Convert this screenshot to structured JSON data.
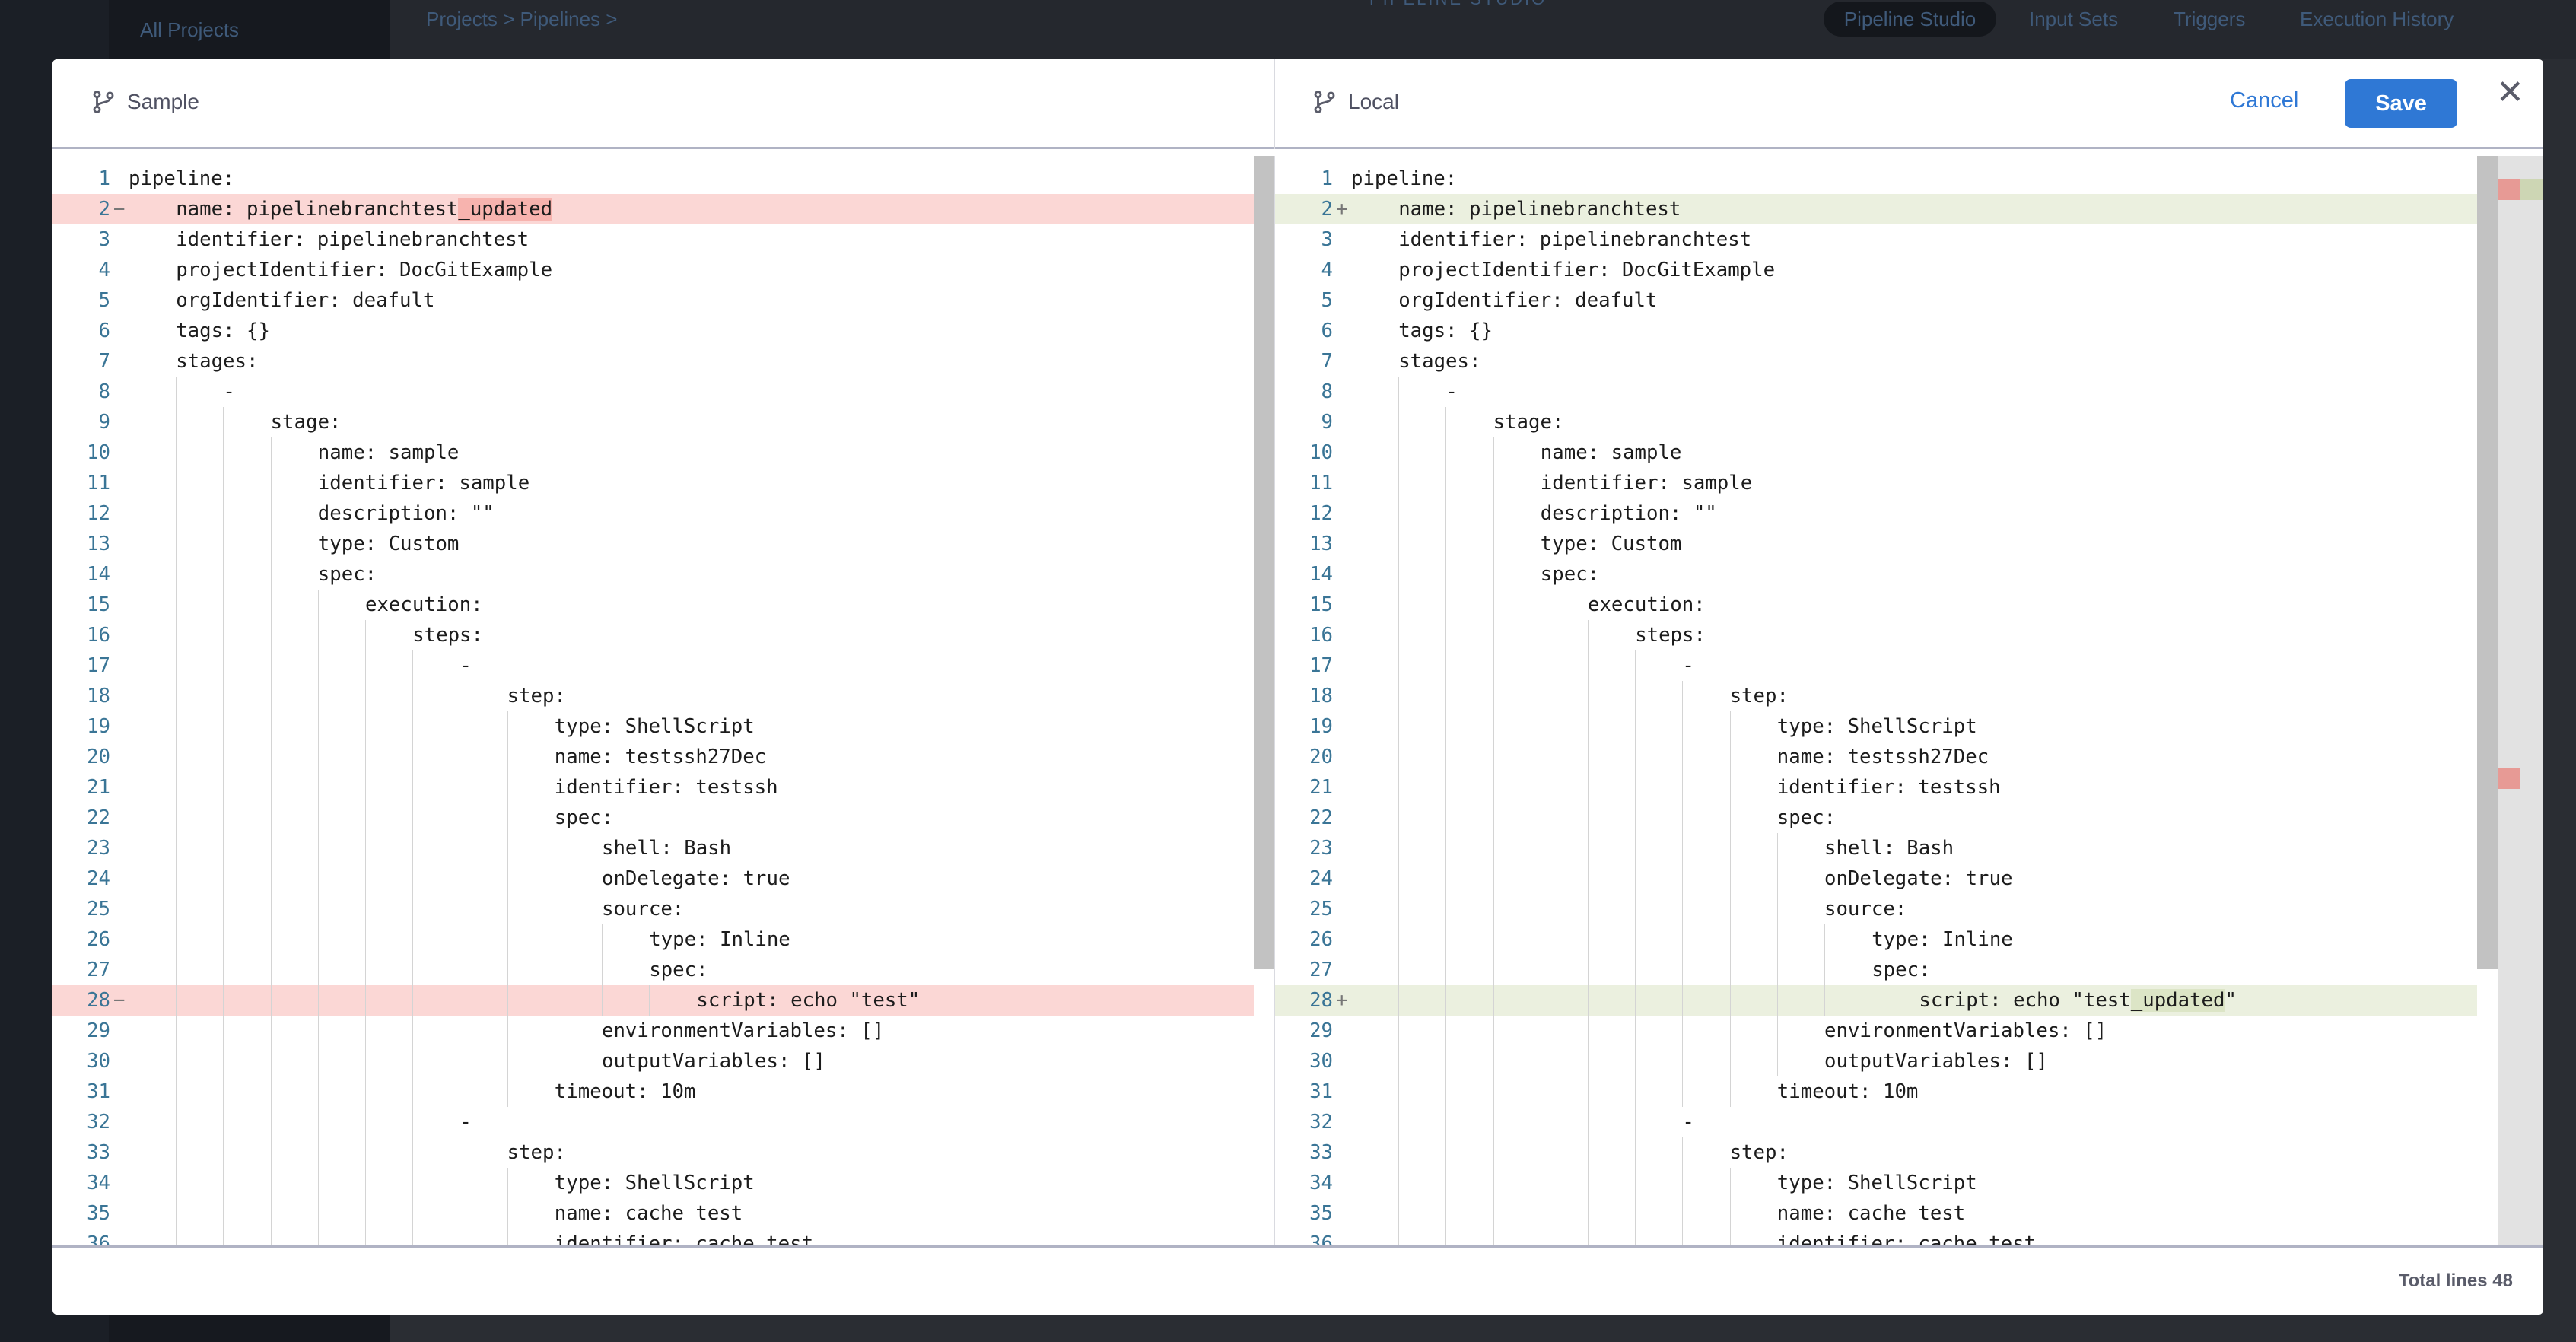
{
  "background": {
    "all_projects": "All Projects",
    "breadcrumb": "Projects > Pipelines >",
    "center_title": "PIPELINE STUDIO",
    "tabs": [
      "Pipeline Studio",
      "Input Sets",
      "Triggers",
      "Execution History"
    ]
  },
  "modal": {
    "left_title": "Sample",
    "right_title": "Local",
    "cancel_label": "Cancel",
    "save_label": "Save",
    "close_label": "✕",
    "footer": "Total lines 48",
    "colors": {
      "removed_bg": "#fbd7d5",
      "removed_mark": "#f7b3ae",
      "added_bg": "#ebf0df",
      "added_mark": "#dce5c6",
      "accent": "#2f78d5"
    },
    "left_lines": [
      {
        "n": "1",
        "i": 0,
        "t": "pipeline:"
      },
      {
        "n": "2",
        "i": 1,
        "t": "name: pipelinebranchtest",
        "mark": "_updated",
        "post": "",
        "type": "del"
      },
      {
        "n": "3",
        "i": 1,
        "t": "identifier: pipelinebranchtest"
      },
      {
        "n": "4",
        "i": 1,
        "t": "projectIdentifier: DocGitExample"
      },
      {
        "n": "5",
        "i": 1,
        "t": "orgIdentifier: deafult"
      },
      {
        "n": "6",
        "i": 1,
        "t": "tags: {}"
      },
      {
        "n": "7",
        "i": 1,
        "t": "stages:"
      },
      {
        "n": "8",
        "i": 2,
        "t": "-"
      },
      {
        "n": "9",
        "i": 3,
        "t": "stage:"
      },
      {
        "n": "10",
        "i": 4,
        "t": "name: sample"
      },
      {
        "n": "11",
        "i": 4,
        "t": "identifier: sample"
      },
      {
        "n": "12",
        "i": 4,
        "t": "description: \"\""
      },
      {
        "n": "13",
        "i": 4,
        "t": "type: Custom"
      },
      {
        "n": "14",
        "i": 4,
        "t": "spec:"
      },
      {
        "n": "15",
        "i": 5,
        "t": "execution:"
      },
      {
        "n": "16",
        "i": 6,
        "t": "steps:"
      },
      {
        "n": "17",
        "i": 7,
        "t": "-"
      },
      {
        "n": "18",
        "i": 8,
        "t": "step:"
      },
      {
        "n": "19",
        "i": 9,
        "t": "type: ShellScript"
      },
      {
        "n": "20",
        "i": 9,
        "t": "name: testssh27Dec"
      },
      {
        "n": "21",
        "i": 9,
        "t": "identifier: testssh"
      },
      {
        "n": "22",
        "i": 9,
        "t": "spec:"
      },
      {
        "n": "23",
        "i": 10,
        "t": "shell: Bash"
      },
      {
        "n": "24",
        "i": 10,
        "t": "onDelegate: true"
      },
      {
        "n": "25",
        "i": 10,
        "t": "source:"
      },
      {
        "n": "26",
        "i": 11,
        "t": "type: Inline"
      },
      {
        "n": "27",
        "i": 11,
        "t": "spec:"
      },
      {
        "n": "28",
        "i": 12,
        "t": "script: echo \"test\"",
        "type": "del"
      },
      {
        "n": "29",
        "i": 10,
        "t": "environmentVariables: []"
      },
      {
        "n": "30",
        "i": 10,
        "t": "outputVariables: []"
      },
      {
        "n": "31",
        "i": 9,
        "t": "timeout: 10m"
      },
      {
        "n": "32",
        "i": 7,
        "t": "-"
      },
      {
        "n": "33",
        "i": 8,
        "t": "step:"
      },
      {
        "n": "34",
        "i": 9,
        "t": "type: ShellScript"
      },
      {
        "n": "35",
        "i": 9,
        "t": "name: cache test"
      },
      {
        "n": "36",
        "i": 9,
        "t": "identifier: cache_test"
      }
    ],
    "right_lines": [
      {
        "n": "1",
        "i": 0,
        "t": "pipeline:"
      },
      {
        "n": "2",
        "i": 1,
        "t": "name: pipelinebranchtest",
        "type": "add"
      },
      {
        "n": "3",
        "i": 1,
        "t": "identifier: pipelinebranchtest"
      },
      {
        "n": "4",
        "i": 1,
        "t": "projectIdentifier: DocGitExample"
      },
      {
        "n": "5",
        "i": 1,
        "t": "orgIdentifier: deafult"
      },
      {
        "n": "6",
        "i": 1,
        "t": "tags: {}"
      },
      {
        "n": "7",
        "i": 1,
        "t": "stages:"
      },
      {
        "n": "8",
        "i": 2,
        "t": "-"
      },
      {
        "n": "9",
        "i": 3,
        "t": "stage:"
      },
      {
        "n": "10",
        "i": 4,
        "t": "name: sample"
      },
      {
        "n": "11",
        "i": 4,
        "t": "identifier: sample"
      },
      {
        "n": "12",
        "i": 4,
        "t": "description: \"\""
      },
      {
        "n": "13",
        "i": 4,
        "t": "type: Custom"
      },
      {
        "n": "14",
        "i": 4,
        "t": "spec:"
      },
      {
        "n": "15",
        "i": 5,
        "t": "execution:"
      },
      {
        "n": "16",
        "i": 6,
        "t": "steps:"
      },
      {
        "n": "17",
        "i": 7,
        "t": "-"
      },
      {
        "n": "18",
        "i": 8,
        "t": "step:"
      },
      {
        "n": "19",
        "i": 9,
        "t": "type: ShellScript"
      },
      {
        "n": "20",
        "i": 9,
        "t": "name: testssh27Dec"
      },
      {
        "n": "21",
        "i": 9,
        "t": "identifier: testssh"
      },
      {
        "n": "22",
        "i": 9,
        "t": "spec:"
      },
      {
        "n": "23",
        "i": 10,
        "t": "shell: Bash"
      },
      {
        "n": "24",
        "i": 10,
        "t": "onDelegate: true"
      },
      {
        "n": "25",
        "i": 10,
        "t": "source:"
      },
      {
        "n": "26",
        "i": 11,
        "t": "type: Inline"
      },
      {
        "n": "27",
        "i": 11,
        "t": "spec:"
      },
      {
        "n": "28",
        "i": 12,
        "t": "script: echo \"test",
        "mark": "_updated",
        "post": "\"",
        "type": "add"
      },
      {
        "n": "29",
        "i": 10,
        "t": "environmentVariables: []"
      },
      {
        "n": "30",
        "i": 10,
        "t": "outputVariables: []"
      },
      {
        "n": "31",
        "i": 9,
        "t": "timeout: 10m"
      },
      {
        "n": "32",
        "i": 7,
        "t": "-"
      },
      {
        "n": "33",
        "i": 8,
        "t": "step:"
      },
      {
        "n": "34",
        "i": 9,
        "t": "type: ShellScript"
      },
      {
        "n": "35",
        "i": 9,
        "t": "name: cache test"
      },
      {
        "n": "36",
        "i": 9,
        "t": "identifier: cache_test"
      }
    ]
  }
}
